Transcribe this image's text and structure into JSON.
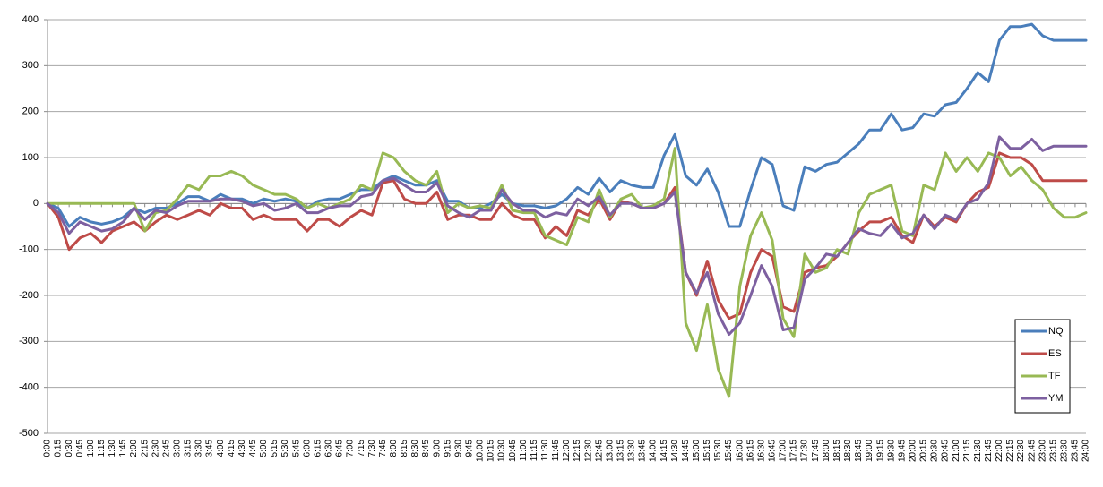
{
  "chart_data": {
    "type": "line",
    "title": "",
    "xlabel": "",
    "ylabel": "",
    "ylim": [
      -500,
      400
    ],
    "y_ticks": [
      -500,
      -400,
      -300,
      -200,
      -100,
      0,
      100,
      200,
      300,
      400
    ],
    "grid": "horizontal",
    "legend_position": "bottom-right",
    "x": [
      "0:00",
      "0:15",
      "0:30",
      "0:45",
      "1:00",
      "1:15",
      "1:30",
      "1:45",
      "2:00",
      "2:15",
      "2:30",
      "2:45",
      "3:00",
      "3:15",
      "3:30",
      "3:45",
      "4:00",
      "4:15",
      "4:30",
      "4:45",
      "5:00",
      "5:15",
      "5:30",
      "5:45",
      "6:00",
      "6:15",
      "6:30",
      "6:45",
      "7:00",
      "7:15",
      "7:30",
      "7:45",
      "8:00",
      "8:15",
      "8:30",
      "8:45",
      "9:00",
      "9:15",
      "9:30",
      "9:45",
      "10:00",
      "10:15",
      "10:30",
      "10:45",
      "11:00",
      "11:15",
      "11:30",
      "11:45",
      "12:00",
      "12:15",
      "12:30",
      "12:45",
      "13:00",
      "13:15",
      "13:30",
      "13:45",
      "14:00",
      "14:15",
      "14:30",
      "14:45",
      "15:00",
      "15:15",
      "15:30",
      "15:45",
      "16:00",
      "16:15",
      "16:30",
      "16:45",
      "17:00",
      "17:15",
      "17:30",
      "17:45",
      "18:00",
      "18:15",
      "18:30",
      "18:45",
      "19:00",
      "19:15",
      "19:30",
      "19:45",
      "20:00",
      "20:15",
      "20:30",
      "20:45",
      "21:00",
      "21:15",
      "21:30",
      "21:45",
      "22:00",
      "22:15",
      "22:30",
      "22:45",
      "23:00",
      "23:15",
      "23:30",
      "23:45",
      "24:00"
    ],
    "x_labels": [
      "0:00",
      "0:15",
      "0:30",
      "0:45",
      "1:00",
      "1:15",
      "1:30",
      "1:45",
      "2:00",
      "2:15",
      "2:30",
      "2:45",
      "3:00",
      "3:15",
      "3:30",
      "3:45",
      "4:00",
      "4:15",
      "4:30",
      "4:45",
      "5:00",
      "5:15",
      "5:30",
      "5:45",
      "6:00",
      "6:15",
      "6:30",
      "6:45",
      "7:00",
      "7:15",
      "7:30",
      "7:45",
      "8:00",
      "8:15",
      "8:30",
      "8:45",
      "9:00",
      "9:15",
      "9:30",
      "9:45",
      "10:00",
      "10:15",
      "10:30",
      "10:45",
      "11:00",
      "11:15",
      "11:30",
      "11:45",
      "12:00",
      "12:15",
      "12:30",
      "12:45",
      "13:00",
      "13:15",
      "13:30",
      "13:45",
      "14:00",
      "14:15",
      "14:30",
      "14:45",
      "15:00",
      "15:15",
      "15:30",
      "15:45",
      "16:00",
      "16:15",
      "16:30",
      "16:45",
      "17:00",
      "17:15",
      "17:30",
      "17:45",
      "18:00",
      "18:15",
      "18:30",
      "18:45",
      "19:00",
      "19:15",
      "19:30",
      "19:45",
      "20:00",
      "20:15",
      "20:30",
      "20:45",
      "21:00",
      "21:15",
      "21:30",
      "21:45",
      "22:00",
      "22:15",
      "22:30",
      "22:45",
      "23:00",
      "23:15",
      "23:30",
      "23:45",
      "24:00"
    ],
    "series": [
      {
        "name": "NQ",
        "color": "#4a7ebb",
        "values": [
          0,
          -10,
          -50,
          -30,
          -40,
          -45,
          -40,
          -30,
          -10,
          -20,
          -10,
          -10,
          0,
          15,
          15,
          5,
          20,
          10,
          10,
          0,
          10,
          5,
          10,
          5,
          -10,
          5,
          10,
          10,
          20,
          30,
          30,
          50,
          60,
          50,
          40,
          40,
          50,
          5,
          5,
          -10,
          -10,
          0,
          20,
          0,
          -5,
          -5,
          -10,
          -5,
          10,
          35,
          20,
          55,
          25,
          50,
          40,
          35,
          35,
          105,
          150,
          60,
          40,
          75,
          25,
          -50,
          -50,
          30,
          100,
          85,
          -5,
          -15,
          80,
          70,
          85,
          90,
          110,
          130,
          160,
          160,
          195,
          160,
          165,
          195,
          190,
          215,
          220,
          250,
          285,
          265,
          355,
          385,
          385,
          390,
          365,
          355,
          355,
          355,
          355
        ]
      },
      {
        "name": "ES",
        "color": "#be4b48",
        "values": [
          0,
          -30,
          -100,
          -75,
          -65,
          -85,
          -60,
          -50,
          -40,
          -60,
          -40,
          -25,
          -35,
          -25,
          -15,
          -25,
          0,
          -10,
          -10,
          -35,
          -25,
          -35,
          -35,
          -35,
          -60,
          -35,
          -35,
          -50,
          -30,
          -15,
          -25,
          45,
          50,
          10,
          0,
          0,
          25,
          -35,
          -25,
          -25,
          -35,
          -35,
          0,
          -25,
          -35,
          -35,
          -75,
          -50,
          -70,
          -15,
          -25,
          10,
          -35,
          5,
          0,
          -10,
          -10,
          0,
          35,
          -150,
          -200,
          -125,
          -210,
          -250,
          -240,
          -150,
          -100,
          -115,
          -225,
          -235,
          -150,
          -140,
          -135,
          -115,
          -85,
          -60,
          -40,
          -40,
          -30,
          -70,
          -85,
          -25,
          -50,
          -30,
          -40,
          0,
          25,
          35,
          110,
          100,
          100,
          85,
          50,
          50,
          50,
          50,
          50
        ]
      },
      {
        "name": "TF",
        "color": "#98b954",
        "values": [
          0,
          0,
          0,
          0,
          0,
          0,
          0,
          0,
          0,
          -60,
          -20,
          -15,
          10,
          40,
          30,
          60,
          60,
          70,
          60,
          40,
          30,
          20,
          20,
          10,
          -10,
          0,
          -10,
          0,
          10,
          40,
          30,
          110,
          100,
          70,
          50,
          40,
          70,
          -20,
          0,
          -10,
          -5,
          -10,
          40,
          -15,
          -20,
          -20,
          -70,
          -80,
          -90,
          -30,
          -40,
          30,
          -30,
          10,
          20,
          -10,
          -5,
          10,
          120,
          -260,
          -320,
          -220,
          -360,
          -420,
          -180,
          -70,
          -20,
          -80,
          -250,
          -290,
          -110,
          -150,
          -140,
          -100,
          -110,
          -20,
          20,
          30,
          40,
          -60,
          -70,
          40,
          30,
          110,
          70,
          100,
          70,
          110,
          100,
          60,
          80,
          50,
          30,
          -10,
          -30,
          -30,
          -20
        ]
      },
      {
        "name": "YM",
        "color": "#7d60a0",
        "values": [
          0,
          -20,
          -65,
          -40,
          -50,
          -60,
          -55,
          -40,
          -10,
          -35,
          -15,
          -20,
          -5,
          5,
          5,
          5,
          10,
          10,
          5,
          -5,
          0,
          -15,
          -10,
          0,
          -20,
          -20,
          -10,
          -5,
          -5,
          15,
          20,
          50,
          55,
          40,
          25,
          25,
          45,
          -5,
          -20,
          -30,
          -15,
          -15,
          30,
          0,
          -15,
          -15,
          -30,
          -20,
          -25,
          10,
          -5,
          15,
          -25,
          0,
          0,
          -10,
          -10,
          0,
          25,
          -150,
          -195,
          -150,
          -240,
          -285,
          -260,
          -200,
          -135,
          -180,
          -275,
          -270,
          -165,
          -140,
          -110,
          -115,
          -85,
          -55,
          -65,
          -70,
          -45,
          -75,
          -65,
          -25,
          -55,
          -25,
          -35,
          0,
          10,
          45,
          145,
          120,
          120,
          140,
          115,
          125,
          125,
          125,
          125
        ]
      }
    ]
  }
}
